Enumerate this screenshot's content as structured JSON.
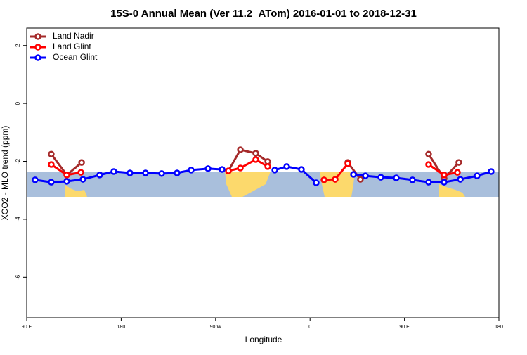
{
  "chart_data": {
    "type": "line",
    "title": "15S-0 Annual Mean (Ver 11.2_ATom)   2016-01-01 to 2018-12-31",
    "x_label": "Longitude",
    "y_label": "XCO2 - MLO trend (ppm)",
    "xlim": [
      90,
      540
    ],
    "ylim": [
      -7.4,
      2.6
    ],
    "xticks": [
      {
        "value": 90,
        "label": "90 E"
      },
      {
        "value": 180,
        "label": "180"
      },
      {
        "value": 270,
        "label": "90 W"
      },
      {
        "value": 360,
        "label": "0"
      },
      {
        "value": 450,
        "label": "90 E"
      },
      {
        "value": 540,
        "label": "180"
      }
    ],
    "yticks": [
      2,
      0,
      -2,
      -4,
      -6
    ],
    "legend": "top-left",
    "series": [
      {
        "name": "Land Nadir",
        "color": "#a52a2a",
        "x": [
          113.4,
          128.2,
          142.3,
          null,
          282.2,
          293.6,
          308.3,
          319.7,
          null,
          396,
          408,
          null,
          473,
          487.8,
          501.8
        ],
        "values": [
          -1.75,
          -2.47,
          -2.04,
          null,
          -2.33,
          -1.6,
          -1.72,
          -2.01,
          null,
          -2.04,
          -2.62,
          null,
          -1.75,
          -2.59,
          -2.04
        ]
      },
      {
        "name": "Land Glint",
        "color": "#ff0000",
        "x": [
          113.4,
          128.2,
          141.6,
          null,
          282.2,
          293.6,
          308.3,
          319.7,
          null,
          373.3,
          384,
          396,
          null,
          473,
          487.8,
          500.5
        ],
        "values": [
          -2.11,
          -2.47,
          -2.38,
          null,
          -2.33,
          -2.23,
          -1.94,
          -2.18,
          null,
          -2.64,
          -2.62,
          -2.08,
          null,
          -2.11,
          -2.47,
          -2.38
        ]
      },
      {
        "name": "Ocean Glint",
        "color": "#0000ff",
        "x": [
          98,
          113.4,
          128.2,
          143.6,
          159.6,
          173,
          188.4,
          203.2,
          218.6,
          233.3,
          246.7,
          262.8,
          276.2,
          null,
          326.4,
          337.8,
          351.8,
          365.9,
          null,
          401.4,
          412.8,
          427.5,
          442.2,
          457.6,
          473,
          487.8,
          503.2,
          519.2,
          532.6
        ],
        "values": [
          -2.64,
          -2.72,
          -2.69,
          -2.62,
          -2.47,
          -2.35,
          -2.4,
          -2.4,
          -2.42,
          -2.4,
          -2.3,
          -2.25,
          -2.28,
          null,
          -2.3,
          -2.18,
          -2.28,
          -2.74,
          null,
          -2.45,
          -2.5,
          -2.55,
          -2.57,
          -2.64,
          -2.72,
          -2.72,
          -2.62,
          -2.5,
          -2.35
        ]
      }
    ]
  }
}
